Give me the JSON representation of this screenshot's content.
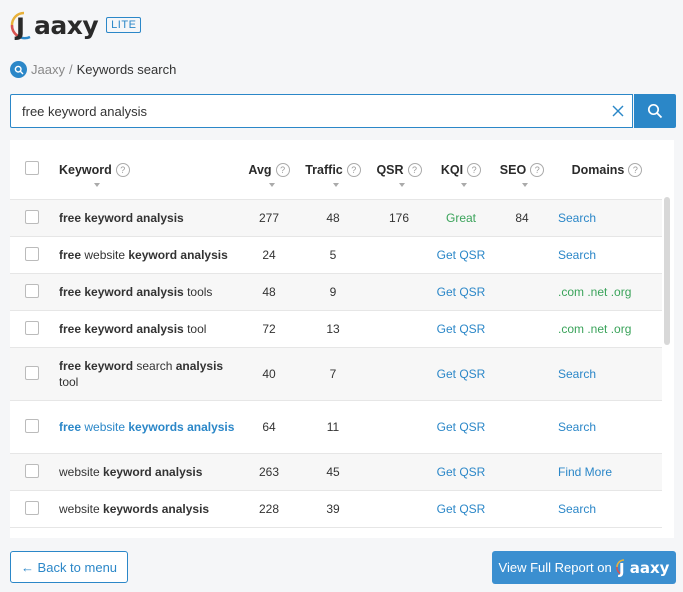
{
  "brand": {
    "name": "Jaaxy",
    "logo_text": "aaxy",
    "badge": "LITE"
  },
  "breadcrumb": {
    "root": "Jaaxy",
    "separator": "/",
    "current": "Keywords search"
  },
  "search": {
    "value": "free keyword analysis"
  },
  "columns": [
    "Keyword",
    "Avg",
    "Traffic",
    "QSR",
    "KQI",
    "SEO",
    "Domains"
  ],
  "rows": [
    {
      "keyword": [
        [
          "free keyword analysis",
          true
        ]
      ],
      "avg": "277",
      "traffic": "48",
      "qsr": "176",
      "kqi": "Great",
      "seo": "84",
      "domains": "Search",
      "domains_style": "blue"
    },
    {
      "keyword": [
        [
          "free",
          true
        ],
        [
          " website ",
          false
        ],
        [
          "keyword analysis",
          true
        ]
      ],
      "avg": "24",
      "traffic": "5",
      "qsr": "",
      "kqi": "Get QSR",
      "seo": "",
      "domains": "Search",
      "domains_style": "blue"
    },
    {
      "keyword": [
        [
          "free keyword analysis",
          true
        ],
        [
          " tools",
          false
        ]
      ],
      "avg": "48",
      "traffic": "9",
      "qsr": "",
      "kqi": "Get QSR",
      "seo": "",
      "domains": ".com .net .org",
      "domains_style": "green"
    },
    {
      "keyword": [
        [
          "free keyword analysis",
          true
        ],
        [
          " tool",
          false
        ]
      ],
      "avg": "72",
      "traffic": "13",
      "qsr": "",
      "kqi": "Get QSR",
      "seo": "",
      "domains": ".com .net .org",
      "domains_style": "green"
    },
    {
      "keyword": [
        [
          "free keyword",
          true
        ],
        [
          " search ",
          false
        ],
        [
          "analysis",
          true
        ],
        [
          " tool",
          false
        ]
      ],
      "avg": "40",
      "traffic": "7",
      "qsr": "",
      "kqi": "Get QSR",
      "seo": "",
      "domains": "Search",
      "domains_style": "blue"
    },
    {
      "keyword": [
        [
          "free",
          true
        ],
        [
          " website ",
          false
        ],
        [
          "keywords analysis",
          true
        ]
      ],
      "link": true,
      "avg": "64",
      "traffic": "11",
      "qsr": "",
      "kqi": "Get QSR",
      "seo": "",
      "domains": "Search",
      "domains_style": "blue"
    },
    {
      "keyword": [
        [
          "website ",
          false
        ],
        [
          "keyword analysis",
          true
        ]
      ],
      "avg": "263",
      "traffic": "45",
      "qsr": "",
      "kqi": "Get QSR",
      "seo": "",
      "domains": "Find More",
      "domains_style": "blue"
    },
    {
      "keyword": [
        [
          "website ",
          false
        ],
        [
          "keywords analysis",
          true
        ]
      ],
      "avg": "228",
      "traffic": "39",
      "qsr": "",
      "kqi": "Get QSR",
      "seo": "",
      "domains": "Search",
      "domains_style": "blue"
    }
  ],
  "footer": {
    "back_label": "← Back to menu",
    "report_label": "View Full Report on",
    "report_logo": "aaxy"
  },
  "colors": {
    "accent": "#2b87c8",
    "good": "#3aa35a"
  }
}
